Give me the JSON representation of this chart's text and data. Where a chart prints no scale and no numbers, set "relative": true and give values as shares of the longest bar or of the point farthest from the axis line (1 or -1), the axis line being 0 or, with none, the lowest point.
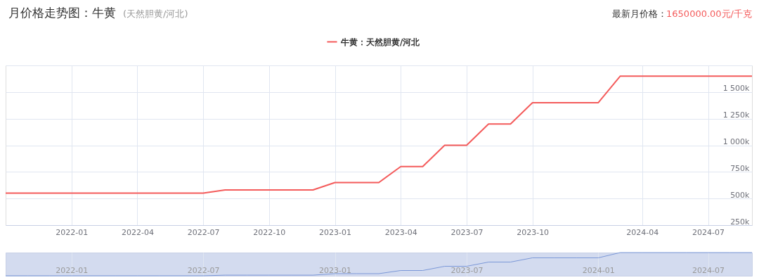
{
  "chart_data": [
    {
      "type": "line",
      "title": "月价格走势图：牛黄",
      "subtitle": "(天然胆黄/河北)",
      "annotations": [
        "最新月价格：",
        "1650000.00元/千克"
      ],
      "categories": [
        null,
        null,
        null,
        "2022-01",
        null,
        null,
        "2022-04",
        null,
        null,
        "2022-07",
        null,
        null,
        "2022-10",
        null,
        null,
        "2023-01",
        null,
        null,
        "2023-04",
        null,
        null,
        "2023-07",
        null,
        null,
        "2023-10",
        null,
        null,
        null,
        null,
        "2024-04",
        null,
        null,
        "2024-07",
        null,
        null
      ],
      "series": [
        {
          "name": "牛黄：天然胆黄/河北",
          "color": "#f45b5b",
          "values": [
            550000,
            550000,
            550000,
            550000,
            550000,
            550000,
            550000,
            550000,
            550000,
            550000,
            580000,
            580000,
            580000,
            580000,
            580000,
            650000,
            650000,
            650000,
            800000,
            800000,
            1000000,
            1000000,
            1200000,
            1200000,
            1400000,
            1400000,
            1400000,
            1400000,
            1650000,
            1650000,
            1650000,
            1650000,
            1650000,
            1650000,
            1650000
          ]
        }
      ],
      "ylim": [
        250000,
        1750000
      ],
      "yticks": [
        {
          "value": 250000,
          "label": "250k"
        },
        {
          "value": 500000,
          "label": "500k"
        },
        {
          "value": 750000,
          "label": "750k"
        },
        {
          "value": 1000000,
          "label": "1 000k"
        },
        {
          "value": 1250000,
          "label": "1 250k"
        },
        {
          "value": 1500000,
          "label": "1 500k"
        },
        {
          "value": 1750000,
          "label": null
        }
      ],
      "grid": true,
      "legend": "top"
    },
    {
      "type": "line",
      "relative": true,
      "tick_labels": "x",
      "grid": "x",
      "categories": [
        null,
        null,
        null,
        "2022-01",
        null,
        null,
        null,
        null,
        null,
        "2022-07",
        null,
        null,
        null,
        null,
        null,
        "2023-01",
        null,
        null,
        null,
        null,
        null,
        "2023-07",
        null,
        null,
        null,
        null,
        null,
        "2024-01",
        null,
        null,
        null,
        null,
        "2024-07",
        null,
        null
      ],
      "series": [
        {
          "color": "#7b98d8",
          "values": [
            0,
            0,
            0,
            0,
            0,
            0,
            0,
            0,
            0,
            0,
            0.027,
            0.027,
            0.027,
            0.027,
            0.027,
            0.091,
            0.091,
            0.091,
            0.227,
            0.227,
            0.409,
            0.409,
            0.591,
            0.591,
            0.773,
            0.773,
            0.773,
            0.773,
            1,
            1,
            1,
            1,
            1,
            1,
            1
          ]
        }
      ]
    }
  ]
}
